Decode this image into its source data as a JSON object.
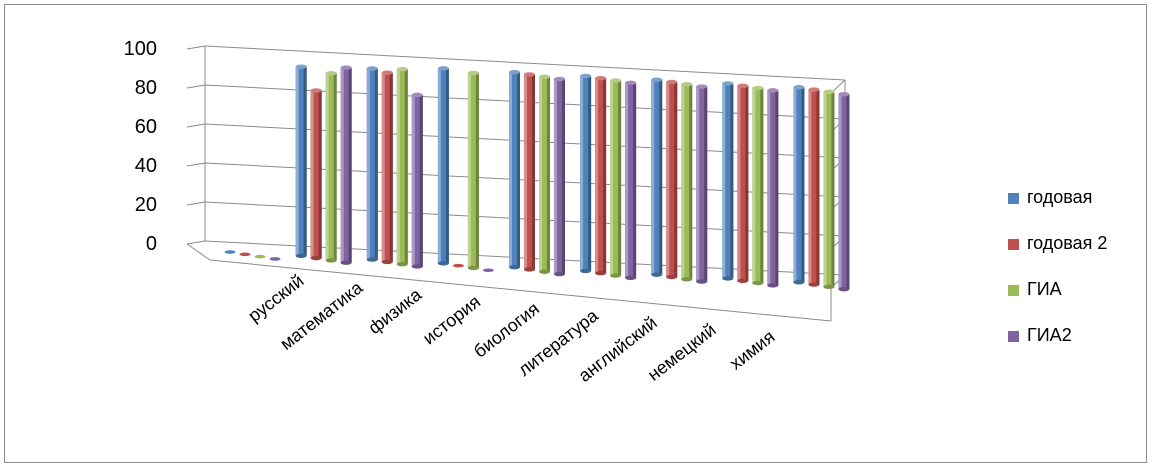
{
  "chart_data": {
    "type": "bar",
    "title": "",
    "xlabel": "",
    "ylabel": "",
    "ylim": [
      0,
      100
    ],
    "yticks": [
      "0",
      "20",
      "40",
      "60",
      "80",
      "100"
    ],
    "grid": true,
    "legend_position": "right",
    "categories": [
      "русский",
      "математика",
      "физика",
      "история",
      "биология",
      "литература",
      "английский",
      "немецкий",
      "химия"
    ],
    "series": [
      {
        "name": "годовая",
        "color": "#4f81bd",
        "values": [
          0,
          97,
          98,
          100,
          100,
          100,
          100,
          100,
          100
        ]
      },
      {
        "name": "годовая 2",
        "color": "#c0504d",
        "values": [
          0,
          86,
          97,
          0,
          100,
          100,
          100,
          100,
          100
        ]
      },
      {
        "name": "ГИА",
        "color": "#9bbb59",
        "values": [
          0,
          96,
          100,
          100,
          100,
          100,
          100,
          100,
          100
        ]
      },
      {
        "name": "ГИА2",
        "color": "#8064a2",
        "values": [
          0,
          100,
          88,
          0,
          100,
          100,
          100,
          100,
          100
        ]
      }
    ]
  }
}
